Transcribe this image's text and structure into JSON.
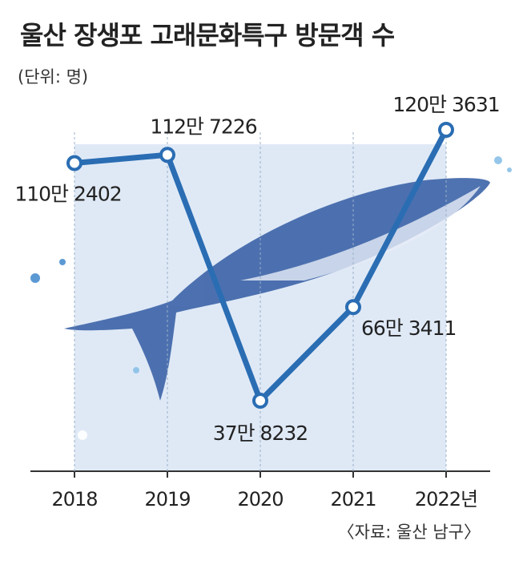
{
  "chart_data": {
    "type": "line",
    "title": "울산 장생포 고래문화특구 방문객 수",
    "subtitle": "(단위: 명)",
    "source": "〈자료: 울산 남구〉",
    "categories": [
      "2018",
      "2019",
      "2020",
      "2021",
      "2022년"
    ],
    "values": [
      1102402,
      1127226,
      378232,
      663411,
      1203631
    ],
    "value_labels": [
      "110만 2402",
      "112만 7226",
      "37만 8232",
      "66만 3411",
      "120만 3631"
    ],
    "color": "#2a6db3"
  }
}
